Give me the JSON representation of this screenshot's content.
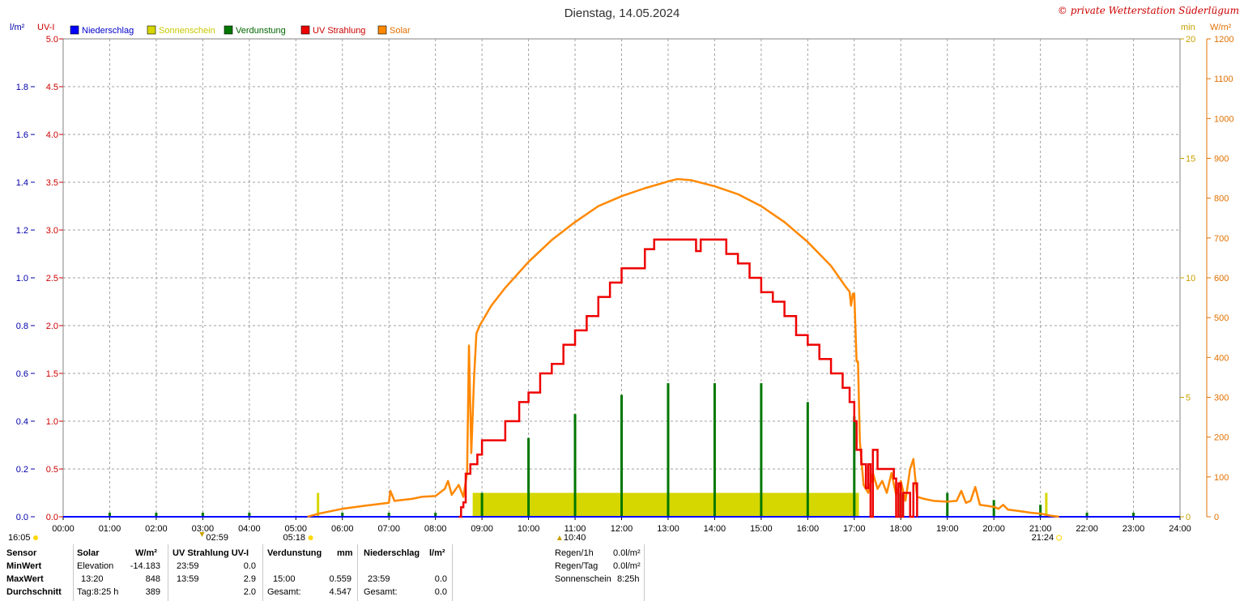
{
  "title": "Dienstag, 14.05.2024",
  "copyright": "© private Wetterstation Süderlügum",
  "left_axis_units": {
    "rain": "l/m²",
    "uv": "UV-I"
  },
  "right_axis_units": {
    "sun": "min",
    "solar": "W/m²"
  },
  "legend": [
    {
      "label": "Niederschlag",
      "color": "#0000ff",
      "text_color": "#0000cc"
    },
    {
      "label": "Sonnenschein",
      "color": "#d6d600",
      "text_color": "#c8c800"
    },
    {
      "label": "Verdunstung",
      "color": "#007700",
      "text_color": "#006600"
    },
    {
      "label": "UV Strahlung",
      "color": "#ee0000",
      "text_color": "#cc0000"
    },
    {
      "label": "Solar",
      "color": "#ff8800",
      "text_color": "#e07000"
    }
  ],
  "colors": {
    "grid": "#a0a0a0",
    "rain": "#0000ff",
    "sun": "#d6d600",
    "evap": "#007700",
    "uv": "#ee0000",
    "solar": "#ff8800"
  },
  "chart_data": {
    "type": "line",
    "x_axis": {
      "range": [
        0,
        24
      ],
      "unit": "hours",
      "tick_labels": [
        "00:00",
        "01:00",
        "02:00",
        "03:00",
        "04:00",
        "05:00",
        "06:00",
        "07:00",
        "08:00",
        "09:00",
        "10:00",
        "11:00",
        "12:00",
        "13:00",
        "14:00",
        "15:00",
        "16:00",
        "17:00",
        "18:00",
        "19:00",
        "20:00",
        "21:00",
        "22:00",
        "23:00",
        "24:00"
      ]
    },
    "axis_rain": {
      "range": [
        0,
        2.0
      ],
      "ticks": [
        "0.0",
        "0.2",
        "0.4",
        "0.6",
        "0.8",
        "1.0",
        "1.2",
        "1.4",
        "1.6",
        "1.8"
      ]
    },
    "axis_uv": {
      "range": [
        0,
        5.0
      ],
      "ticks": [
        "0.0",
        "0.5",
        "1.0",
        "1.5",
        "2.0",
        "2.5",
        "3.0",
        "3.5",
        "4.0",
        "4.5",
        "5.0"
      ]
    },
    "axis_sun": {
      "range": [
        0,
        20
      ],
      "ticks": [
        "0",
        "5",
        "10",
        "15",
        "20"
      ]
    },
    "axis_solar": {
      "range": [
        0,
        1200
      ],
      "ticks": [
        "0",
        "100",
        "200",
        "300",
        "400",
        "500",
        "600",
        "700",
        "800",
        "900",
        "1000",
        "1100",
        "1200"
      ]
    },
    "grid": true,
    "legend_placement": "top-left",
    "series": [
      {
        "name": "Solar",
        "unit": "W/m²",
        "points": [
          [
            5.25,
            0
          ],
          [
            5.5,
            8
          ],
          [
            6.0,
            20
          ],
          [
            6.5,
            28
          ],
          [
            7.0,
            35
          ],
          [
            7.03,
            65
          ],
          [
            7.12,
            40
          ],
          [
            7.5,
            45
          ],
          [
            7.7,
            50
          ],
          [
            8.0,
            52
          ],
          [
            8.2,
            70
          ],
          [
            8.27,
            90
          ],
          [
            8.35,
            55
          ],
          [
            8.5,
            80
          ],
          [
            8.6,
            50
          ],
          [
            8.68,
            110
          ],
          [
            8.72,
            430
          ],
          [
            8.77,
            160
          ],
          [
            8.83,
            350
          ],
          [
            8.88,
            460
          ],
          [
            8.95,
            480
          ],
          [
            9.2,
            530
          ],
          [
            9.5,
            575
          ],
          [
            10.0,
            640
          ],
          [
            10.5,
            695
          ],
          [
            11.0,
            740
          ],
          [
            11.5,
            780
          ],
          [
            12.0,
            805
          ],
          [
            12.5,
            825
          ],
          [
            13.0,
            842
          ],
          [
            13.2,
            848
          ],
          [
            13.5,
            845
          ],
          [
            14.0,
            830
          ],
          [
            14.5,
            810
          ],
          [
            15.0,
            780
          ],
          [
            15.5,
            740
          ],
          [
            16.0,
            690
          ],
          [
            16.5,
            630
          ],
          [
            16.8,
            580
          ],
          [
            16.9,
            565
          ],
          [
            16.93,
            530
          ],
          [
            16.97,
            560
          ],
          [
            17.0,
            560
          ],
          [
            17.05,
            390
          ],
          [
            17.08,
            390
          ],
          [
            17.12,
            190
          ],
          [
            17.2,
            80
          ],
          [
            17.3,
            60
          ],
          [
            17.4,
            110
          ],
          [
            17.5,
            70
          ],
          [
            17.6,
            90
          ],
          [
            17.7,
            60
          ],
          [
            17.8,
            110
          ],
          [
            17.9,
            55
          ],
          [
            18.0,
            90
          ],
          [
            18.1,
            40
          ],
          [
            18.2,
            120
          ],
          [
            18.27,
            145
          ],
          [
            18.35,
            50
          ],
          [
            18.5,
            45
          ],
          [
            18.7,
            40
          ],
          [
            19.0,
            38
          ],
          [
            19.2,
            40
          ],
          [
            19.3,
            65
          ],
          [
            19.4,
            35
          ],
          [
            19.5,
            40
          ],
          [
            19.6,
            75
          ],
          [
            19.7,
            30
          ],
          [
            20.0,
            25
          ],
          [
            20.1,
            20
          ],
          [
            20.2,
            30
          ],
          [
            20.3,
            18
          ],
          [
            20.5,
            15
          ],
          [
            20.8,
            10
          ],
          [
            21.0,
            8
          ],
          [
            21.2,
            3
          ],
          [
            21.4,
            0
          ]
        ]
      },
      {
        "name": "UV Strahlung",
        "unit": "UV-I",
        "points": [
          [
            8.5,
            0
          ],
          [
            8.55,
            0.1
          ],
          [
            8.6,
            0.15
          ],
          [
            8.65,
            0.45
          ],
          [
            8.75,
            0.55
          ],
          [
            8.9,
            0.65
          ],
          [
            9.0,
            0.8
          ],
          [
            9.25,
            0.8
          ],
          [
            9.5,
            1.0
          ],
          [
            9.8,
            1.2
          ],
          [
            10.0,
            1.3
          ],
          [
            10.25,
            1.5
          ],
          [
            10.5,
            1.6
          ],
          [
            10.75,
            1.8
          ],
          [
            11.0,
            1.95
          ],
          [
            11.25,
            2.1
          ],
          [
            11.5,
            2.3
          ],
          [
            11.75,
            2.45
          ],
          [
            12.0,
            2.6
          ],
          [
            12.5,
            2.8
          ],
          [
            12.7,
            2.9
          ],
          [
            13.0,
            2.9
          ],
          [
            13.5,
            2.9
          ],
          [
            13.6,
            2.78
          ],
          [
            13.7,
            2.9
          ],
          [
            14.0,
            2.9
          ],
          [
            14.25,
            2.75
          ],
          [
            14.5,
            2.65
          ],
          [
            14.75,
            2.5
          ],
          [
            15.0,
            2.35
          ],
          [
            15.25,
            2.25
          ],
          [
            15.5,
            2.1
          ],
          [
            15.75,
            1.9
          ],
          [
            16.0,
            1.8
          ],
          [
            16.25,
            1.65
          ],
          [
            16.5,
            1.5
          ],
          [
            16.75,
            1.35
          ],
          [
            16.9,
            1.2
          ],
          [
            17.0,
            1.0
          ],
          [
            17.05,
            0.7
          ],
          [
            17.15,
            0.55
          ],
          [
            17.25,
            0.3
          ],
          [
            17.3,
            0.55
          ],
          [
            17.35,
            0.0
          ],
          [
            17.4,
            0.7
          ],
          [
            17.5,
            0.5
          ],
          [
            17.75,
            0.5
          ],
          [
            17.85,
            0.4
          ],
          [
            17.9,
            0.0
          ],
          [
            17.95,
            0.35
          ],
          [
            18.0,
            0.0
          ],
          [
            18.05,
            0.25
          ],
          [
            18.2,
            0.0
          ],
          [
            18.27,
            0.35
          ],
          [
            18.35,
            0.0
          ]
        ]
      },
      {
        "name": "Sonnenschein",
        "unit": "min",
        "bars": [
          {
            "start": 5.45,
            "end": 5.5,
            "value": 1.0
          },
          {
            "start": 8.8,
            "end": 17.1,
            "value": 1.0
          },
          {
            "start": 21.1,
            "end": 21.15,
            "value": 1.0
          }
        ]
      },
      {
        "name": "Verdunstung",
        "unit": "l/m²",
        "bars": [
          {
            "x": 1.0,
            "value": 0.005
          },
          {
            "x": 2.0,
            "value": 0.005
          },
          {
            "x": 3.0,
            "value": 0.005
          },
          {
            "x": 4.0,
            "value": 0.005
          },
          {
            "x": 6.0,
            "value": 0.005
          },
          {
            "x": 7.0,
            "value": 0.005
          },
          {
            "x": 8.0,
            "value": 0.005
          },
          {
            "x": 9.0,
            "value": 0.1
          },
          {
            "x": 10.0,
            "value": 0.33
          },
          {
            "x": 11.0,
            "value": 0.43
          },
          {
            "x": 12.0,
            "value": 0.51
          },
          {
            "x": 13.0,
            "value": 0.559
          },
          {
            "x": 14.0,
            "value": 0.559
          },
          {
            "x": 15.0,
            "value": 0.559
          },
          {
            "x": 16.0,
            "value": 0.48
          },
          {
            "x": 17.0,
            "value": 0.42
          },
          {
            "x": 18.0,
            "value": 0.1
          },
          {
            "x": 19.0,
            "value": 0.1
          },
          {
            "x": 20.0,
            "value": 0.07
          },
          {
            "x": 21.0,
            "value": 0.05
          },
          {
            "x": 22.0,
            "value": 0.005
          },
          {
            "x": 23.0,
            "value": 0.005
          }
        ]
      },
      {
        "name": "Niederschlag",
        "unit": "l/m²",
        "points": [
          [
            0,
            0
          ],
          [
            24,
            0
          ]
        ]
      }
    ]
  },
  "astro": {
    "moonset": "16:05",
    "moonrise": "02:59",
    "sunrise": "05:18",
    "noon": "10:40",
    "sunset": "21:24"
  },
  "table": {
    "headers": [
      "Sensor",
      "Solar",
      "W/m²",
      "UV Strahlung UV-I",
      "Verdunstung",
      "mm",
      "Niederschlag",
      "l/m²"
    ],
    "rows": [
      {
        "label": "MinWert",
        "solar_time": "Elevation",
        "solar_value": "-14.183",
        "uv_time": "23:59",
        "uv_value": "0.0",
        "evap_time": "",
        "evap_value": "",
        "rain_time": "",
        "rain_value": ""
      },
      {
        "label": "MaxWert",
        "solar_time": "13:20",
        "solar_value": "848",
        "uv_time": "13:59",
        "uv_value": "2.9",
        "evap_time": "15:00",
        "evap_value": "0.559",
        "rain_time": "23:59",
        "rain_value": "0.0"
      },
      {
        "label": "Durchschnitt",
        "solar_time": "Tag:8:25 h",
        "solar_value": "389",
        "uv_time": "",
        "uv_value": "2.0",
        "evap_time": "Gesamt:",
        "evap_value": "4.547",
        "rain_time": "Gesamt:",
        "rain_value": "0.0"
      }
    ],
    "summary": [
      {
        "label": "Regen/1h",
        "value": "0.0l/m²"
      },
      {
        "label": "Regen/Tag",
        "value": "0.0l/m²"
      },
      {
        "label": "Sonnenschein",
        "value": "8:25h"
      }
    ]
  }
}
